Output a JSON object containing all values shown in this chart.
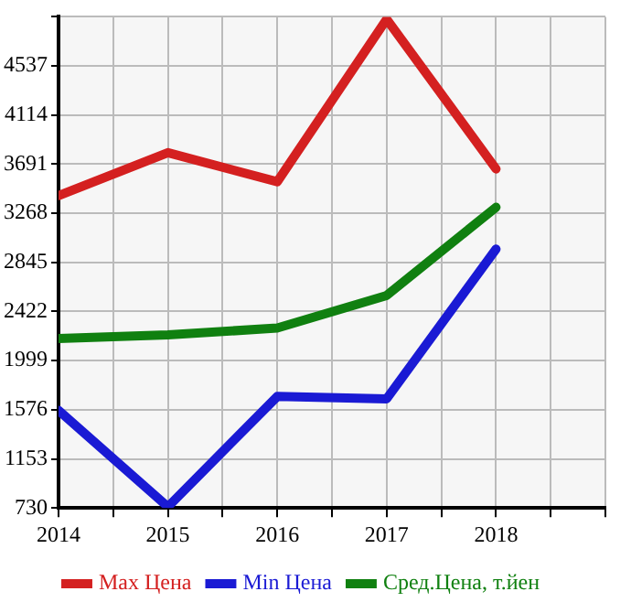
{
  "chart_data": {
    "type": "line",
    "x": [
      2014,
      2015,
      2016,
      2017,
      2018
    ],
    "xlim": [
      2014,
      2019
    ],
    "xticks": [
      2014,
      {
        "value": 2014.5,
        "label": null
      },
      2015,
      {
        "value": 2015.5,
        "label": null
      },
      2016,
      {
        "value": 2016.5,
        "label": null
      },
      2017,
      {
        "value": 2017.5,
        "label": null
      },
      2018,
      {
        "value": 2018.5,
        "label": null
      },
      {
        "value": 2019,
        "label": null
      }
    ],
    "ylim": [
      730,
      4960
    ],
    "yticks": [
      730,
      1153,
      1576,
      1999,
      2422,
      2845,
      3268,
      3691,
      4114,
      4537,
      {
        "value": 4960,
        "label": null
      }
    ],
    "grid": true,
    "legend": "bottom",
    "marker": "none",
    "line_style": "solid",
    "series": [
      {
        "name": "Max Цена",
        "color": "#d42020",
        "values": [
          3420,
          3790,
          3540,
          4940,
          3650
        ]
      },
      {
        "name": "Min Цена",
        "color": "#1a1ad4",
        "values": [
          1570,
          740,
          1690,
          1670,
          2960
        ]
      },
      {
        "name": "Сред.Цена, т.йен",
        "color": "#108010",
        "values": [
          2190,
          2220,
          2280,
          2560,
          3320
        ]
      }
    ]
  }
}
